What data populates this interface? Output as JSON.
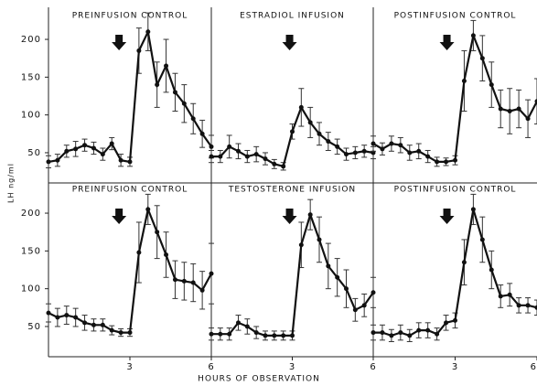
{
  "chart_data": [
    {
      "type": "line",
      "title": "PREINFUSION CONTROL",
      "ylabel": "LH ng/ml",
      "color": "#111",
      "x": [
        0,
        0.333,
        0.667,
        1,
        1.333,
        1.667,
        2,
        2.333,
        2.667,
        3,
        3.333,
        3.667,
        4,
        4.333,
        4.667,
        5,
        5.333,
        5.667,
        6
      ],
      "values": [
        38,
        40,
        52,
        55,
        60,
        56,
        48,
        62,
        40,
        38,
        185,
        210,
        140,
        165,
        130,
        115,
        95,
        75,
        58
      ],
      "errors": [
        8,
        8,
        8,
        10,
        8,
        8,
        8,
        8,
        8,
        6,
        30,
        25,
        30,
        35,
        25,
        25,
        20,
        18,
        15
      ],
      "arrow_x": 2.6,
      "xlim": [
        0,
        6
      ],
      "ylim": [
        10,
        240
      ],
      "yticks": [
        50,
        100,
        150,
        200
      ]
    },
    {
      "type": "line",
      "title": "ESTRADIOL INFUSION",
      "color": "#111",
      "x": [
        0,
        0.333,
        0.667,
        1,
        1.333,
        1.667,
        2,
        2.333,
        2.667,
        3,
        3.333,
        3.667,
        4,
        4.333,
        4.667,
        5,
        5.333,
        5.667,
        6
      ],
      "values": [
        45,
        45,
        58,
        52,
        45,
        48,
        42,
        35,
        32,
        78,
        110,
        90,
        75,
        65,
        58,
        48,
        50,
        52,
        50
      ],
      "errors": [
        8,
        8,
        15,
        10,
        8,
        10,
        8,
        6,
        5,
        10,
        25,
        20,
        15,
        12,
        10,
        8,
        8,
        8,
        8
      ],
      "arrow_x": 2.9,
      "xlim": [
        0,
        6
      ],
      "ylim": [
        10,
        240
      ]
    },
    {
      "type": "line",
      "title": "POSTINFUSION CONTROL",
      "color": "#111",
      "x": [
        0,
        0.333,
        0.667,
        1,
        1.333,
        1.667,
        2,
        2.333,
        2.667,
        3,
        3.333,
        3.667,
        4,
        4.333,
        4.667,
        5,
        5.333,
        5.667,
        6
      ],
      "values": [
        62,
        55,
        62,
        60,
        50,
        52,
        45,
        38,
        38,
        40,
        145,
        205,
        175,
        140,
        108,
        105,
        108,
        95,
        118
      ],
      "errors": [
        10,
        8,
        10,
        10,
        10,
        10,
        8,
        6,
        5,
        6,
        40,
        20,
        30,
        30,
        25,
        30,
        25,
        25,
        30
      ],
      "arrow_x": 2.7,
      "xlim": [
        0,
        6
      ],
      "ylim": [
        10,
        240
      ]
    },
    {
      "type": "line",
      "title": "PREINFUSION CONTROL",
      "color": "#111",
      "x": [
        0,
        0.333,
        0.667,
        1,
        1.333,
        1.667,
        2,
        2.333,
        2.667,
        3,
        3.333,
        3.667,
        4,
        4.333,
        4.667,
        5,
        5.333,
        5.667,
        6
      ],
      "values": [
        68,
        62,
        65,
        62,
        55,
        52,
        52,
        45,
        42,
        42,
        148,
        205,
        175,
        145,
        112,
        110,
        108,
        98,
        120
      ],
      "errors": [
        12,
        12,
        12,
        12,
        10,
        8,
        8,
        6,
        5,
        5,
        40,
        20,
        35,
        30,
        25,
        25,
        25,
        25,
        40
      ],
      "arrow_x": 2.6,
      "xlim": [
        0,
        6
      ],
      "ylim": [
        10,
        240
      ],
      "yticks": [
        50,
        100,
        150,
        200
      ],
      "xticks": [
        3,
        6
      ]
    },
    {
      "type": "line",
      "title": "TESTOSTERONE INFUSION",
      "xlabel": "HOURS OF OBSERVATION",
      "color": "#111",
      "x": [
        0,
        0.333,
        0.667,
        1,
        1.333,
        1.667,
        2,
        2.333,
        2.667,
        3,
        3.333,
        3.667,
        4,
        4.333,
        4.667,
        5,
        5.333,
        5.667,
        6
      ],
      "values": [
        40,
        40,
        40,
        55,
        50,
        42,
        38,
        38,
        38,
        38,
        158,
        198,
        165,
        130,
        115,
        100,
        72,
        78,
        95
      ],
      "errors": [
        8,
        8,
        8,
        10,
        10,
        8,
        6,
        6,
        6,
        6,
        30,
        20,
        30,
        30,
        25,
        25,
        15,
        15,
        20
      ],
      "arrow_x": 2.9,
      "xlim": [
        0,
        6
      ],
      "ylim": [
        10,
        240
      ],
      "xticks": [
        3,
        6
      ]
    },
    {
      "type": "line",
      "title": "POSTINFUSION CONTROL",
      "color": "#111",
      "x": [
        0,
        0.333,
        0.667,
        1,
        1.333,
        1.667,
        2,
        2.333,
        2.667,
        3,
        3.333,
        3.667,
        4,
        4.333,
        4.667,
        5,
        5.333,
        5.667,
        6
      ],
      "values": [
        42,
        42,
        38,
        42,
        38,
        45,
        45,
        40,
        55,
        58,
        135,
        205,
        165,
        125,
        90,
        92,
        78,
        78,
        75
      ],
      "errors": [
        10,
        10,
        8,
        10,
        8,
        10,
        10,
        8,
        10,
        10,
        30,
        20,
        30,
        25,
        15,
        15,
        10,
        10,
        10
      ],
      "arrow_x": 2.7,
      "xlim": [
        0,
        6
      ],
      "ylim": [
        10,
        240
      ],
      "xticks": [
        3,
        6
      ]
    }
  ]
}
